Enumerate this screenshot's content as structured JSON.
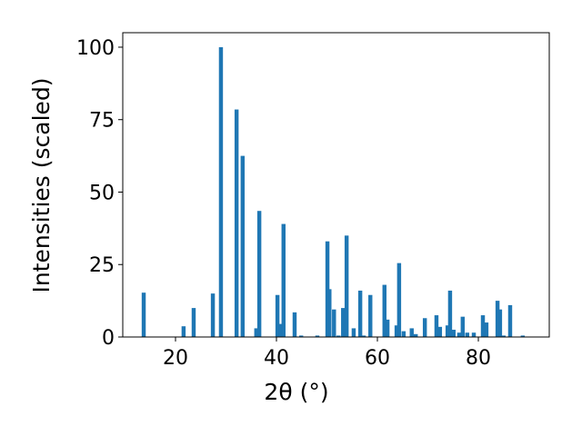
{
  "chart_data": {
    "type": "bar",
    "xlabel": "2θ (°)",
    "ylabel": "Intensities (scaled)",
    "x": [
      13.7,
      21.6,
      23.6,
      27.4,
      29.0,
      32.1,
      33.3,
      36.0,
      36.6,
      40.2,
      40.9,
      41.4,
      43.6,
      44.9,
      48.1,
      50.1,
      50.5,
      51.4,
      52.3,
      53.2,
      53.9,
      55.3,
      56.6,
      57.3,
      58.6,
      61.4,
      62.0,
      63.8,
      64.3,
      65.2,
      66.8,
      67.6,
      69.4,
      71.7,
      72.4,
      73.9,
      74.4,
      75.1,
      76.2,
      76.9,
      77.8,
      79.1,
      80.9,
      81.6,
      83.8,
      84.3,
      85.0,
      86.3,
      88.8
    ],
    "values": [
      15.3,
      3.7,
      10,
      15,
      100,
      78.5,
      62.5,
      3,
      43.5,
      14.5,
      4.5,
      39,
      8.5,
      0.5,
      0.5,
      33,
      16.5,
      9.5,
      0.5,
      10,
      35,
      3,
      16,
      0.5,
      14.5,
      18,
      6,
      4,
      25.5,
      2,
      3,
      1,
      6.5,
      7.5,
      3.5,
      4,
      16,
      2.5,
      1.5,
      7,
      1.5,
      1.5,
      7.5,
      5,
      12.5,
      9.5,
      0.5,
      11,
      0.5
    ],
    "color": "#1f77b4",
    "xlim": [
      9.55,
      94.05
    ],
    "xticks": [
      20,
      40,
      60,
      80
    ],
    "ylim": [
      0,
      105
    ],
    "yticks": [
      0,
      25,
      50,
      75,
      100
    ]
  }
}
